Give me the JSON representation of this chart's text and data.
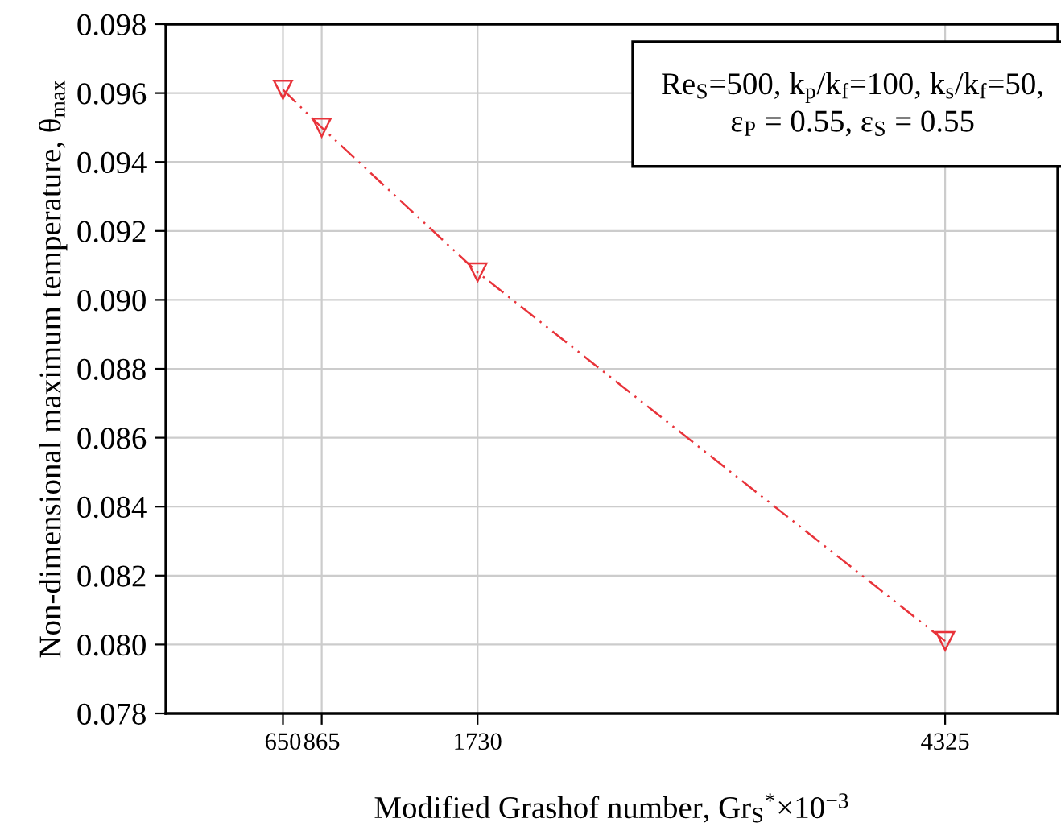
{
  "chart_data": {
    "type": "line",
    "xlabel": "Modified Grashof number, Gr$_{S}$$^{*}$×10$^{−3}$",
    "ylabel": "Non-dimensional maximum temperature, θ$_{max}$",
    "x": [
      650,
      865,
      1730,
      4325
    ],
    "series": [
      {
        "color": "#e8333a",
        "values": [
          0.0961,
          0.095,
          0.0908,
          0.0801
        ]
      }
    ],
    "xlim": [
      0,
      4950
    ],
    "xticks": [
      650,
      865,
      1730,
      4325
    ],
    "ylim": [
      0.078,
      0.098
    ],
    "yticks": [
      {
        "value": 0.078,
        "label": "0.078"
      },
      {
        "value": 0.08,
        "label": "0.080"
      },
      {
        "value": 0.082,
        "label": "0.082"
      },
      {
        "value": 0.084,
        "label": "0.084"
      },
      {
        "value": 0.086,
        "label": "0.086"
      },
      {
        "value": 0.088,
        "label": "0.088"
      },
      {
        "value": 0.09,
        "label": "0.090"
      },
      {
        "value": 0.092,
        "label": "0.092"
      },
      {
        "value": 0.094,
        "label": "0.094"
      },
      {
        "value": 0.096,
        "label": "0.096"
      },
      {
        "value": 0.098,
        "label": "0.098"
      }
    ],
    "annotations": [
      "Re$_{S}$=500, k$_{p}$/k$_{f}$=100, k$_{s}$/k$_{f}$=50,\nε$_{P}$ = 0.55, ε$_{S}$ = 0.55"
    ],
    "grid": true,
    "marker": "triangle",
    "line_style": "dashed"
  }
}
